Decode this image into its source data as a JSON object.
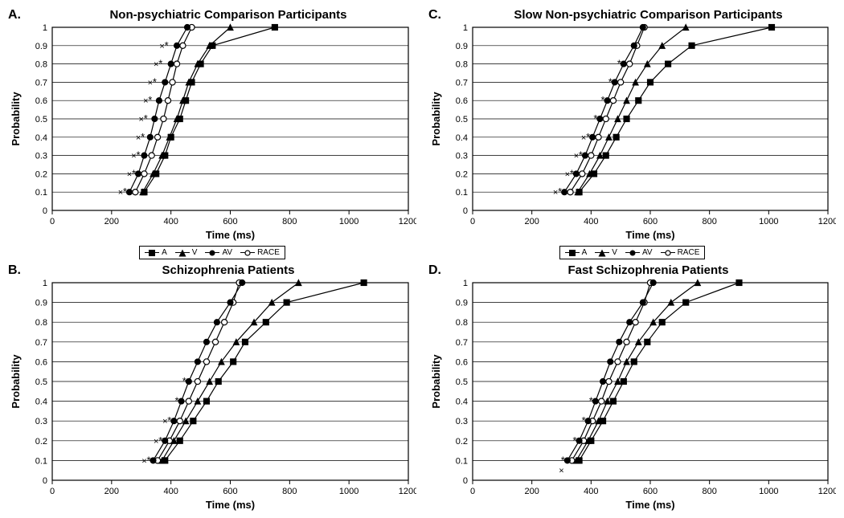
{
  "figure": {
    "background_color": "#ffffff",
    "text_color": "#000000",
    "grid_color": "#000000",
    "line_color": "#000000",
    "font_family": "Arial",
    "panel_letter_fontsize": 16,
    "title_fontsize": 15,
    "axis_label_fontsize": 13,
    "tick_fontsize": 11,
    "legend_fontsize": 10,
    "marker_size": 5,
    "line_width": 1.2,
    "xlim": [
      0,
      1200
    ],
    "ylim": [
      0,
      1.0
    ],
    "xticks": [
      0,
      200,
      400,
      600,
      800,
      1000,
      1200
    ],
    "yticks": [
      0,
      0.1,
      0.2,
      0.3,
      0.4,
      0.5,
      0.6,
      0.7,
      0.8,
      0.9,
      1.0
    ],
    "xlabel": "Time (ms)",
    "ylabel": "Probability",
    "legend": {
      "items": [
        {
          "label": "A",
          "marker": "filled-square"
        },
        {
          "label": "V",
          "marker": "filled-triangle"
        },
        {
          "label": "AV",
          "marker": "filled-circle"
        },
        {
          "label": "RACE",
          "marker": "open-circle"
        }
      ]
    },
    "panels": {
      "A": {
        "letter": "A.",
        "title": "Non-psychiatric Comparison Participants",
        "show_legend": true,
        "series": {
          "A": {
            "marker": "filled-square",
            "x": [
              310,
              350,
              380,
              400,
              430,
              450,
              470,
              500,
              540,
              750
            ],
            "y": [
              0.1,
              0.2,
              0.3,
              0.4,
              0.5,
              0.6,
              0.7,
              0.8,
              0.9,
              1.0
            ]
          },
          "V": {
            "marker": "filled-triangle",
            "x": [
              305,
              340,
              370,
              395,
              420,
              440,
              460,
              490,
              530,
              600
            ],
            "y": [
              0.1,
              0.2,
              0.3,
              0.4,
              0.5,
              0.6,
              0.7,
              0.8,
              0.9,
              1.0
            ]
          },
          "AV": {
            "marker": "filled-circle",
            "x": [
              260,
              290,
              310,
              330,
              345,
              360,
              380,
              400,
              420,
              455
            ],
            "y": [
              0.1,
              0.2,
              0.3,
              0.4,
              0.5,
              0.6,
              0.7,
              0.8,
              0.9,
              1.0
            ]
          },
          "RACE": {
            "marker": "open-circle",
            "x": [
              280,
              310,
              335,
              355,
              375,
              390,
              405,
              420,
              440,
              470
            ],
            "y": [
              0.1,
              0.2,
              0.3,
              0.4,
              0.5,
              0.6,
              0.7,
              0.8,
              0.9,
              1.0
            ]
          }
        },
        "sig_x": {
          "x": [
            230,
            260,
            275,
            290,
            300,
            315,
            330,
            350,
            370
          ],
          "y": [
            0.1,
            0.2,
            0.3,
            0.4,
            0.5,
            0.6,
            0.7,
            0.8,
            0.9
          ]
        },
        "sig_star": {
          "x": [
            245,
            275,
            290,
            305,
            315,
            330,
            345,
            365,
            385
          ],
          "y": [
            0.1,
            0.2,
            0.3,
            0.4,
            0.5,
            0.6,
            0.7,
            0.8,
            0.9
          ]
        }
      },
      "B": {
        "letter": "B.",
        "title": "Schizophrenia Patients",
        "show_legend": false,
        "series": {
          "A": {
            "marker": "filled-square",
            "x": [
              380,
              430,
              475,
              520,
              560,
              610,
              650,
              720,
              790,
              1050
            ],
            "y": [
              0.1,
              0.2,
              0.3,
              0.4,
              0.5,
              0.6,
              0.7,
              0.8,
              0.9,
              1.0
            ]
          },
          "V": {
            "marker": "filled-triangle",
            "x": [
              370,
              410,
              450,
              490,
              530,
              570,
              620,
              680,
              740,
              830
            ],
            "y": [
              0.1,
              0.2,
              0.3,
              0.4,
              0.5,
              0.6,
              0.7,
              0.8,
              0.9,
              1.0
            ]
          },
          "AV": {
            "marker": "filled-circle",
            "x": [
              340,
              380,
              410,
              435,
              460,
              490,
              520,
              555,
              600,
              640
            ],
            "y": [
              0.1,
              0.2,
              0.3,
              0.4,
              0.5,
              0.6,
              0.7,
              0.8,
              0.9,
              1.0
            ]
          },
          "RACE": {
            "marker": "open-circle",
            "x": [
              355,
              395,
              430,
              460,
              490,
              520,
              550,
              580,
              610,
              630
            ],
            "y": [
              0.1,
              0.2,
              0.3,
              0.4,
              0.5,
              0.6,
              0.7,
              0.8,
              0.9,
              1.0
            ]
          }
        },
        "sig_x": {
          "x": [
            310,
            350,
            380
          ],
          "y": [
            0.1,
            0.2,
            0.3
          ]
        },
        "sig_star": {
          "x": [
            325,
            365,
            395,
            420,
            445
          ],
          "y": [
            0.1,
            0.2,
            0.3,
            0.4,
            0.5
          ]
        }
      },
      "C": {
        "letter": "C.",
        "title": "Slow Non-psychiatric Comparison Participants",
        "show_legend": true,
        "series": {
          "A": {
            "marker": "filled-square",
            "x": [
              360,
              410,
              450,
              485,
              520,
              560,
              600,
              660,
              740,
              1010
            ],
            "y": [
              0.1,
              0.2,
              0.3,
              0.4,
              0.5,
              0.6,
              0.7,
              0.8,
              0.9,
              1.0
            ]
          },
          "V": {
            "marker": "filled-triangle",
            "x": [
              355,
              395,
              430,
              460,
              490,
              520,
              550,
              590,
              640,
              720
            ],
            "y": [
              0.1,
              0.2,
              0.3,
              0.4,
              0.5,
              0.6,
              0.7,
              0.8,
              0.9,
              1.0
            ]
          },
          "AV": {
            "marker": "filled-circle",
            "x": [
              310,
              350,
              380,
              405,
              430,
              455,
              480,
              510,
              545,
              575
            ],
            "y": [
              0.1,
              0.2,
              0.3,
              0.4,
              0.5,
              0.6,
              0.7,
              0.8,
              0.9,
              1.0
            ]
          },
          "RACE": {
            "marker": "open-circle",
            "x": [
              330,
              370,
              400,
              425,
              450,
              475,
              500,
              530,
              555,
              580
            ],
            "y": [
              0.1,
              0.2,
              0.3,
              0.4,
              0.5,
              0.6,
              0.7,
              0.8,
              0.9,
              1.0
            ]
          }
        },
        "sig_x": {
          "x": [
            280,
            320,
            350,
            375
          ],
          "y": [
            0.1,
            0.2,
            0.3,
            0.4
          ]
        },
        "sig_star": {
          "x": [
            295,
            335,
            365,
            390,
            415,
            440,
            465,
            495
          ],
          "y": [
            0.1,
            0.2,
            0.3,
            0.4,
            0.5,
            0.6,
            0.7,
            0.8
          ]
        }
      },
      "D": {
        "letter": "D.",
        "title": "Fast Schizophrenia Patients",
        "show_legend": false,
        "series": {
          "A": {
            "marker": "filled-square",
            "x": [
              360,
              400,
              440,
              475,
              510,
              545,
              590,
              640,
              720,
              900
            ],
            "y": [
              0.1,
              0.2,
              0.3,
              0.4,
              0.5,
              0.6,
              0.7,
              0.8,
              0.9,
              1.0
            ]
          },
          "V": {
            "marker": "filled-triangle",
            "x": [
              350,
              390,
              425,
              455,
              490,
              520,
              560,
              610,
              670,
              760
            ],
            "y": [
              0.1,
              0.2,
              0.3,
              0.4,
              0.5,
              0.6,
              0.7,
              0.8,
              0.9,
              1.0
            ]
          },
          "AV": {
            "marker": "filled-circle",
            "x": [
              320,
              360,
              390,
              415,
              440,
              465,
              495,
              530,
              575,
              610
            ],
            "y": [
              0.1,
              0.2,
              0.3,
              0.4,
              0.5,
              0.6,
              0.7,
              0.8,
              0.9,
              1.0
            ]
          },
          "RACE": {
            "marker": "open-circle",
            "x": [
              335,
              375,
              405,
              435,
              460,
              490,
              520,
              550,
              580,
              600
            ],
            "y": [
              0.1,
              0.2,
              0.3,
              0.4,
              0.5,
              0.6,
              0.7,
              0.8,
              0.9,
              1.0
            ]
          }
        },
        "sig_x": {
          "x": [
            300
          ],
          "y": [
            0.05
          ]
        },
        "sig_star": {
          "x": [
            305,
            345,
            375,
            400
          ],
          "y": [
            0.1,
            0.2,
            0.3,
            0.4
          ]
        }
      }
    }
  }
}
